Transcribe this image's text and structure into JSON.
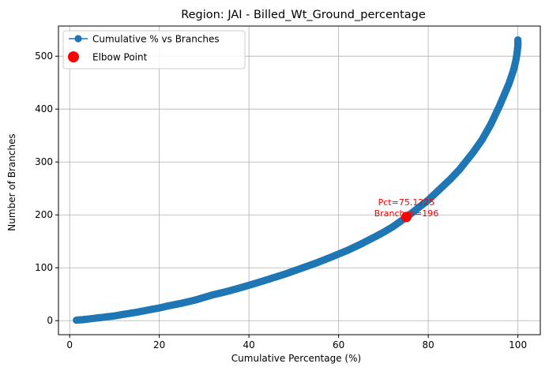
{
  "chart_data": {
    "type": "line",
    "title": "Region: JAI - Billed_Wt_Ground_percentage",
    "xlabel": "Cumulative Percentage (%)",
    "ylabel": "Number of Branches",
    "xlim": [
      -2.5,
      105
    ],
    "ylim": [
      -26.5,
      557
    ],
    "x_ticks": [
      0,
      20,
      40,
      60,
      80,
      100
    ],
    "y_ticks": [
      0,
      100,
      200,
      300,
      400,
      500
    ],
    "x_tick_labels": [
      "0",
      "20",
      "40",
      "60",
      "80",
      "100"
    ],
    "y_tick_labels": [
      "0",
      "100",
      "200",
      "300",
      "400",
      "500"
    ],
    "grid": true,
    "legend_position": "top-left",
    "series": [
      {
        "name": "Cumulative % vs Branches",
        "color": "#1f77b4",
        "marker": "circle",
        "points": [
          [
            1.5,
            1
          ],
          [
            3,
            2
          ],
          [
            5,
            4
          ],
          [
            7,
            6
          ],
          [
            10,
            9
          ],
          [
            12,
            12
          ],
          [
            15,
            16
          ],
          [
            18,
            21
          ],
          [
            20,
            24
          ],
          [
            22,
            28
          ],
          [
            25,
            33
          ],
          [
            28,
            39
          ],
          [
            30,
            44
          ],
          [
            32,
            49
          ],
          [
            35,
            55
          ],
          [
            38,
            62
          ],
          [
            40,
            67
          ],
          [
            42,
            72
          ],
          [
            45,
            80
          ],
          [
            48,
            88
          ],
          [
            50,
            94
          ],
          [
            52,
            100
          ],
          [
            55,
            109
          ],
          [
            58,
            119
          ],
          [
            60,
            126
          ],
          [
            62,
            133
          ],
          [
            65,
            145
          ],
          [
            68,
            158
          ],
          [
            70,
            167
          ],
          [
            72,
            177
          ],
          [
            75,
            195
          ],
          [
            77,
            208
          ],
          [
            80,
            228
          ],
          [
            82,
            244
          ],
          [
            85,
            268
          ],
          [
            87,
            286
          ],
          [
            90,
            318
          ],
          [
            92,
            342
          ],
          [
            94,
            372
          ],
          [
            96,
            408
          ],
          [
            97,
            428
          ],
          [
            98,
            448
          ],
          [
            99,
            473
          ],
          [
            99.5,
            490
          ],
          [
            99.8,
            505
          ],
          [
            100,
            520
          ],
          [
            100,
            531
          ]
        ]
      },
      {
        "name": "Elbow Point",
        "color": "#ff0000",
        "marker": "circle",
        "points": [
          [
            75.1225,
            196
          ]
        ]
      }
    ],
    "annotation": {
      "x": 75.1225,
      "y": 196,
      "line1": "Pct=75.1225",
      "line2": "Branches=196",
      "color": "#ff0000"
    }
  }
}
